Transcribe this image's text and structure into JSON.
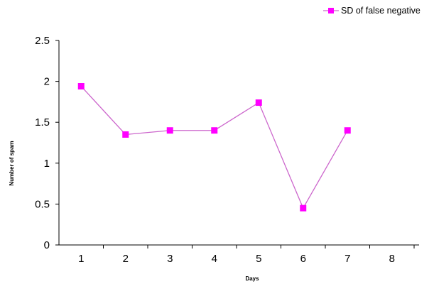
{
  "chart_data": {
    "type": "line",
    "xlabel": "Days",
    "ylabel": "Number of spam",
    "categories": [
      "1",
      "2",
      "3",
      "4",
      "5",
      "6",
      "7",
      "8"
    ],
    "ylim": [
      0,
      2.5
    ],
    "yticks": [
      "0",
      "0.5",
      "1",
      "1.5",
      "2",
      "2.5"
    ],
    "grid": false,
    "legend_position": "top-right",
    "series": [
      {
        "name": "SD of false negative",
        "color": "#ff00ff",
        "line_color": "#cc66cc",
        "marker": "square",
        "values": [
          1.94,
          1.35,
          1.4,
          1.4,
          1.74,
          0.45,
          1.4,
          null
        ]
      }
    ]
  }
}
